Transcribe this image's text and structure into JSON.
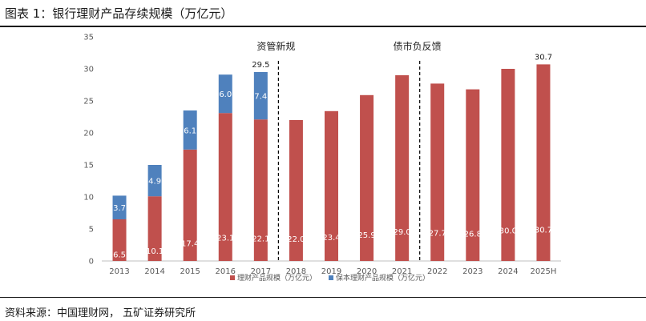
{
  "header": {
    "title": "图表 1：银行理财产品存续规模（万亿元）"
  },
  "source": {
    "text": "资料来源：中国理财网， 五矿证券研究所"
  },
  "colors": {
    "wealth": "#C0504D",
    "guaranteed": "#4F81BD"
  },
  "chart_data": {
    "type": "bar",
    "stacked": true,
    "title": "银行理财产品存续规模（万亿元）",
    "categories": [
      "2013",
      "2014",
      "2015",
      "2016",
      "2017",
      "2018",
      "2019",
      "2020",
      "2021",
      "2022",
      "2023",
      "2024",
      "2025H"
    ],
    "series": [
      {
        "name": "理财产品规模（万亿元）",
        "values": [
          6.5,
          10.1,
          17.4,
          23.1,
          22.1,
          22.0,
          23.4,
          25.9,
          29.0,
          27.7,
          26.8,
          30.0,
          30.7
        ]
      },
      {
        "name": "保本理财产品规模（万亿元）",
        "values": [
          3.7,
          4.9,
          6.1,
          6.0,
          7.4,
          null,
          null,
          null,
          null,
          null,
          null,
          null,
          null
        ]
      }
    ],
    "totals_labeled": [
      {
        "category": "2017",
        "label": "29.5"
      },
      {
        "category": "2025H",
        "label": "30.7"
      }
    ],
    "annotations": [
      {
        "text": "资管新规",
        "after_category": "2017"
      },
      {
        "text": "债市负反馈",
        "after_category": "2021"
      }
    ],
    "ylim": [
      0,
      35
    ],
    "yticks": [
      0,
      5,
      10,
      15,
      20,
      25,
      30,
      35
    ],
    "xlabel": "",
    "ylabel": "",
    "legend": "bottom-center"
  }
}
